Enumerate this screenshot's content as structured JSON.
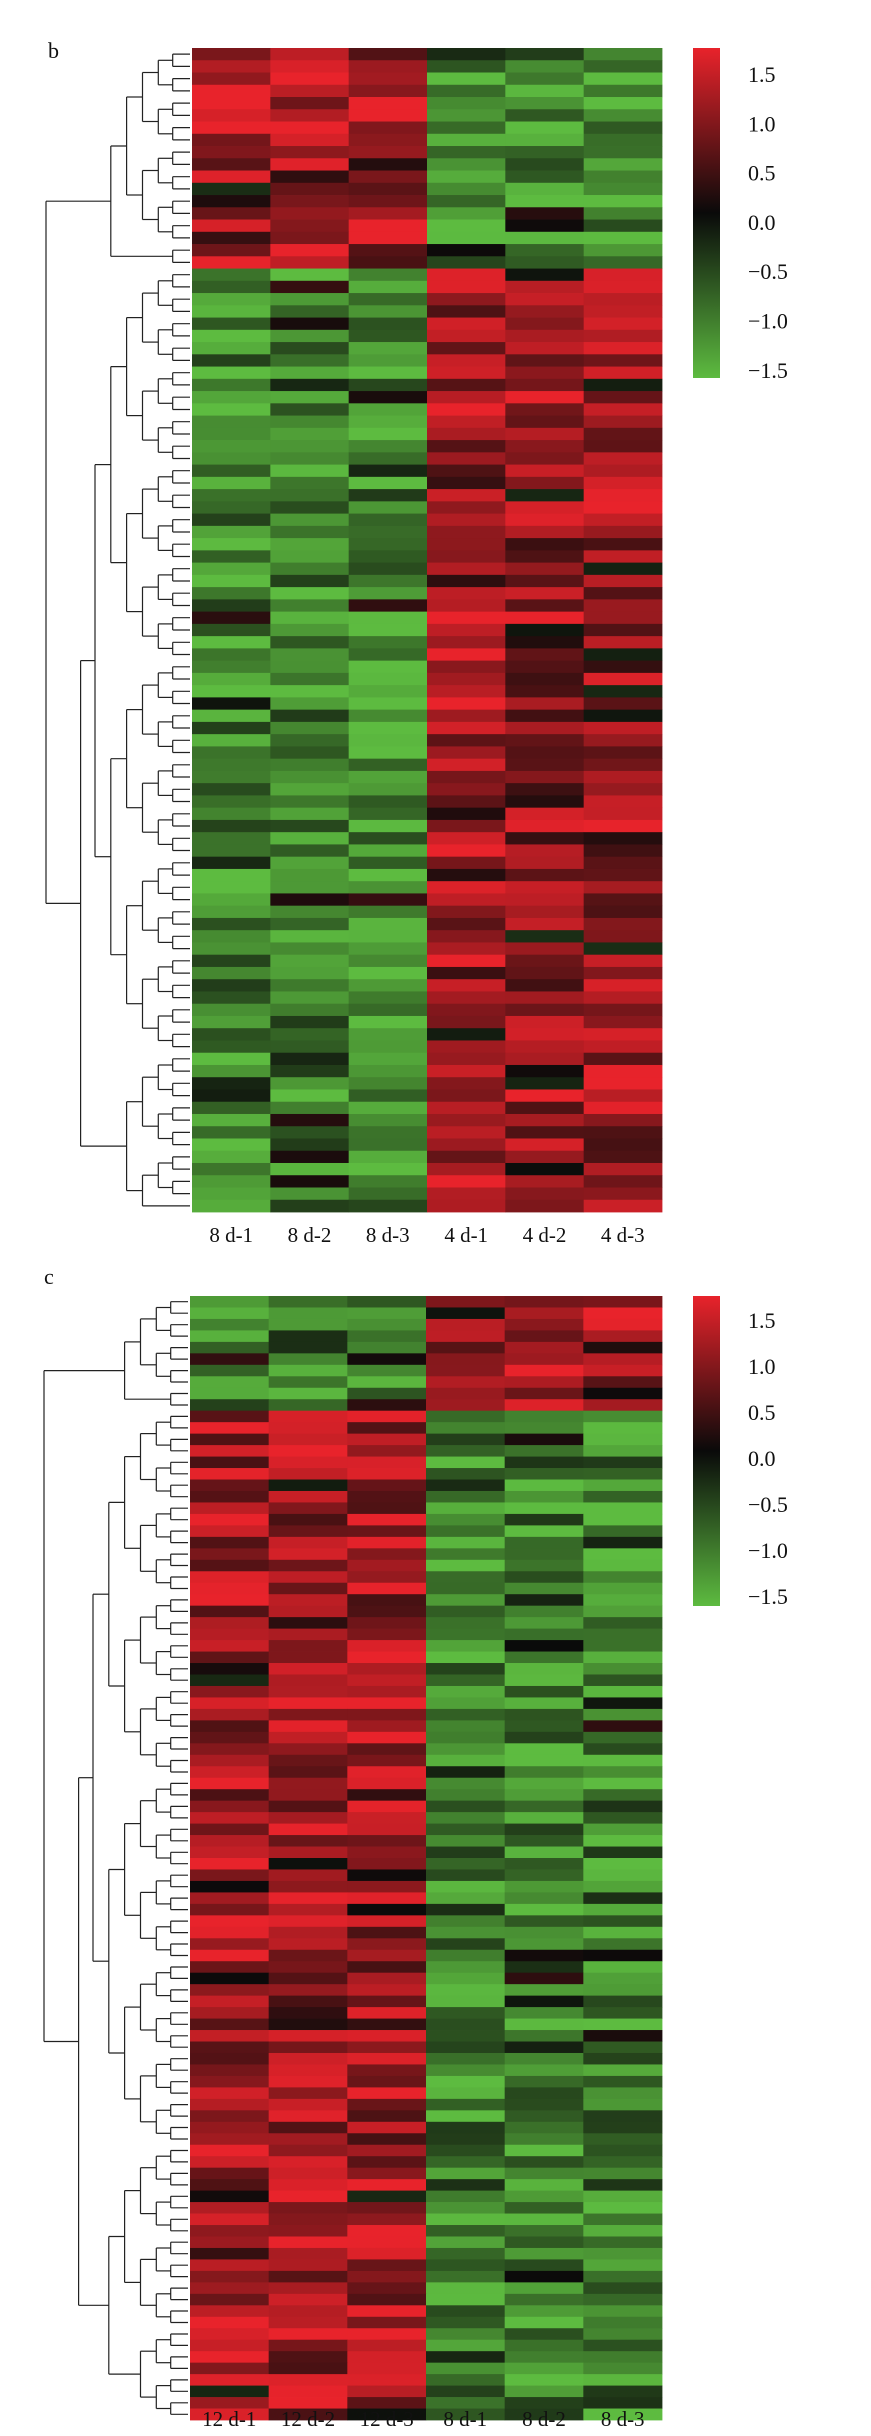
{
  "chart_data": [
    {
      "type": "heatmap",
      "panel_label": "b",
      "columns": [
        "8 d-1",
        "8 d-2",
        "8 d-3",
        "4 d-1",
        "4 d-2",
        "4 d-3"
      ],
      "cluster_split_row": 18,
      "row_count": 95,
      "colorbar": {
        "ticks": [
          "1.5",
          "1.0",
          "0.5",
          "0.0",
          "−0.5",
          "−1.0",
          "−1.5"
        ],
        "range": [
          -1.7,
          1.7
        ],
        "colors": {
          "high": "#e8232b",
          "mid": "#0a0a0a",
          "low": "#5dbb40"
        }
      },
      "dendrogram": "rows"
    },
    {
      "type": "heatmap",
      "panel_label": "c",
      "columns": [
        "12 d-1",
        "12 d-2",
        "12 d-3",
        "8 d-1",
        "8 d-2",
        "8 d-3"
      ],
      "cluster_split_row": 10,
      "row_count": 98,
      "colorbar": {
        "ticks": [
          "1.5",
          "1.0",
          "0.5",
          "0.0",
          "−0.5",
          "−1.0",
          "−1.5"
        ],
        "range": [
          -1.7,
          1.7
        ],
        "colors": {
          "high": "#e8232b",
          "mid": "#0a0a0a",
          "low": "#5dbb40"
        }
      },
      "dendrogram": "rows"
    }
  ]
}
